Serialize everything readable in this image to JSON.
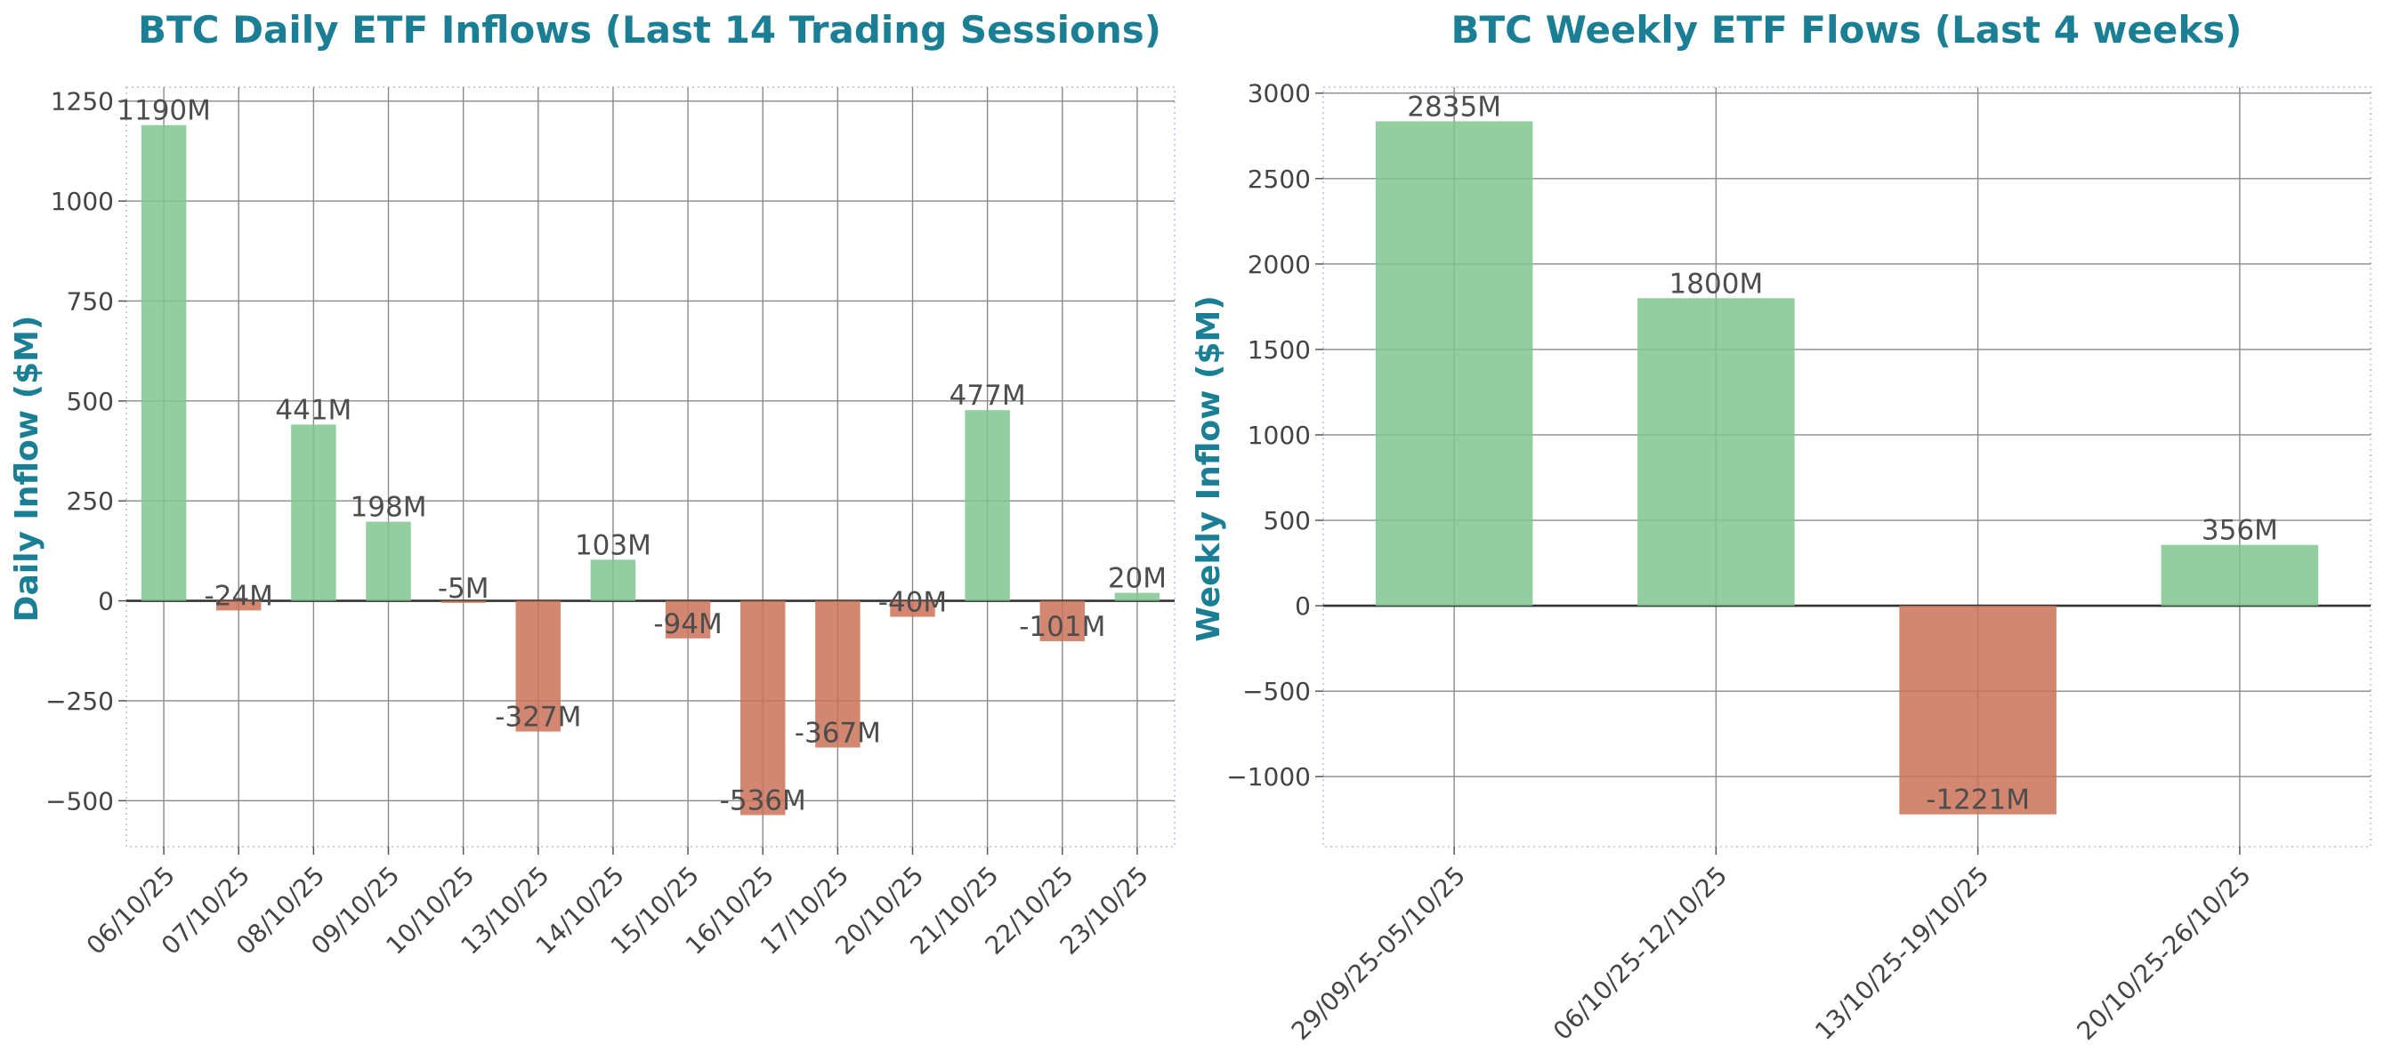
{
  "colors": {
    "title": "#1a7f94",
    "positive": "#7fc68f",
    "negative": "#cc7257",
    "grid": "#8a8a8a",
    "zero": "#333333",
    "frame": "#c9cde8"
  },
  "chart_data": [
    {
      "type": "bar",
      "title": "BTC Daily ETF Inflows (Last 14 Trading Sessions)",
      "xlabel": "",
      "ylabel": "Daily Inflow ($M)",
      "categories": [
        "06/10/25",
        "07/10/25",
        "08/10/25",
        "09/10/25",
        "10/10/25",
        "13/10/25",
        "14/10/25",
        "15/10/25",
        "16/10/25",
        "17/10/25",
        "20/10/25",
        "21/10/25",
        "22/10/25",
        "23/10/25"
      ],
      "values": [
        1190,
        -24,
        441,
        198,
        -5,
        -327,
        103,
        -94,
        -536,
        -367,
        -40,
        477,
        -101,
        20
      ],
      "data_labels": [
        "1190M",
        "-24M",
        "441M",
        "198M",
        "-5M",
        "-327M",
        "103M",
        "-94M",
        "-536M",
        "-367M",
        "-40M",
        "477M",
        "-101M",
        "20M"
      ],
      "yticks": [
        -500,
        -250,
        0,
        250,
        500,
        750,
        1000,
        1250
      ],
      "ytick_labels": [
        "−500",
        "−250",
        "0",
        "250",
        "500",
        "750",
        "1000",
        "1250"
      ],
      "ylim": [
        -615,
        1285
      ],
      "grid": true,
      "legend": "none"
    },
    {
      "type": "bar",
      "title": "BTC Weekly ETF Flows (Last 4 weeks)",
      "xlabel": "",
      "ylabel": "Weekly Inflow ($M)",
      "categories": [
        "29/09/25-05/10/25",
        "06/10/25-12/10/25",
        "13/10/25-19/10/25",
        "20/10/25-26/10/25"
      ],
      "values": [
        2835,
        1800,
        -1221,
        356
      ],
      "data_labels": [
        "2835M",
        "1800M",
        "-1221M",
        "356M"
      ],
      "yticks": [
        -1000,
        -500,
        0,
        500,
        1000,
        1500,
        2000,
        2500,
        3000
      ],
      "ytick_labels": [
        "−1000",
        "−500",
        "0",
        "500",
        "1000",
        "1500",
        "2000",
        "2500",
        "3000"
      ],
      "ylim": [
        -1410,
        3035
      ],
      "grid": true,
      "legend": "none"
    }
  ]
}
